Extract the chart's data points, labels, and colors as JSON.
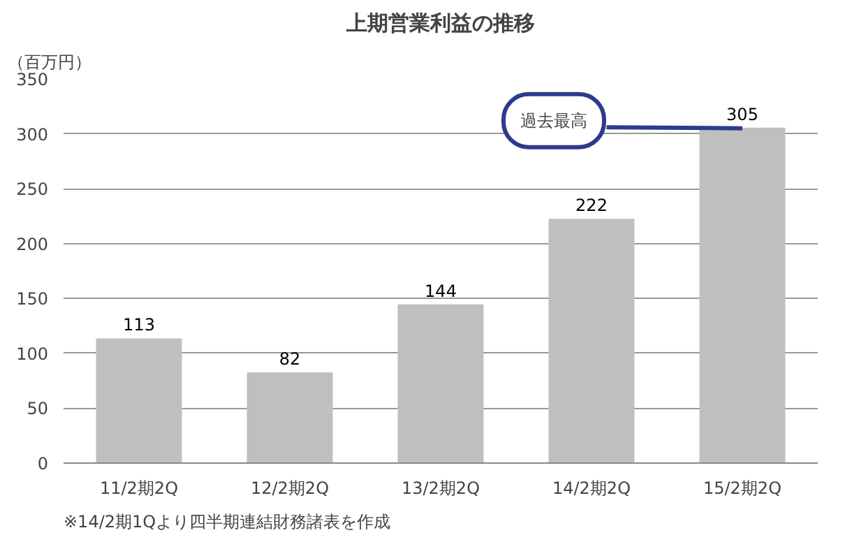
{
  "chart_data": {
    "type": "bar",
    "title": "上期営業利益の推移",
    "ylabel": "（百万円）",
    "categories": [
      "11/2期2Q",
      "12/2期2Q",
      "13/2期2Q",
      "14/2期2Q",
      "15/2期2Q"
    ],
    "values": [
      113,
      82,
      144,
      222,
      305
    ],
    "color": "#bfbfbf",
    "ylim": [
      0,
      350
    ],
    "yticks": [
      0,
      50,
      100,
      150,
      200,
      250,
      300,
      350
    ],
    "grid": "y",
    "data_labels": true,
    "annotations": [
      {
        "text": "過去最高",
        "x": "15/2期2Q",
        "y": 305
      },
      "※14/2期1Qより四半期連結財務諸表を作成"
    ]
  }
}
